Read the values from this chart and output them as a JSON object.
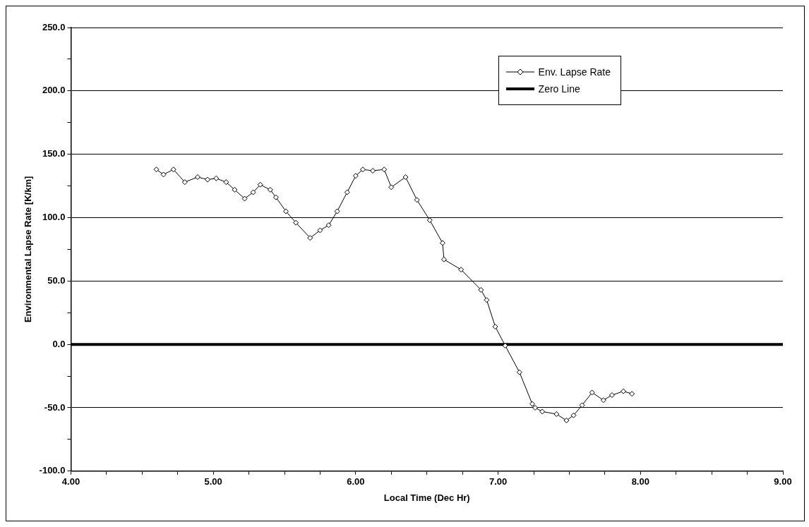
{
  "chart_data": {
    "type": "line",
    "xlabel": "Local Time (Dec Hr)",
    "ylabel": "Environmental Lapse Rate [K/km]",
    "xlim": [
      4,
      9
    ],
    "xticks": [
      {
        "value": 4,
        "label": "4.00"
      },
      {
        "value": 4.25,
        "label": null
      },
      {
        "value": 4.5,
        "label": null
      },
      {
        "value": 4.75,
        "label": null
      },
      {
        "value": 5,
        "label": "5.00"
      },
      {
        "value": 5.25,
        "label": null
      },
      {
        "value": 5.5,
        "label": null
      },
      {
        "value": 5.75,
        "label": null
      },
      {
        "value": 6,
        "label": "6.00"
      },
      {
        "value": 6.25,
        "label": null
      },
      {
        "value": 6.5,
        "label": null
      },
      {
        "value": 6.75,
        "label": null
      },
      {
        "value": 7,
        "label": "7.00"
      },
      {
        "value": 7.25,
        "label": null
      },
      {
        "value": 7.5,
        "label": null
      },
      {
        "value": 7.75,
        "label": null
      },
      {
        "value": 8,
        "label": "8.00"
      },
      {
        "value": 8.25,
        "label": null
      },
      {
        "value": 8.5,
        "label": null
      },
      {
        "value": 8.75,
        "label": null
      },
      {
        "value": 9,
        "label": "9.00"
      }
    ],
    "ylim": [
      -100,
      250
    ],
    "yticks": [
      {
        "value": -100,
        "label": "-100.0"
      },
      {
        "value": -75,
        "label": null
      },
      {
        "value": -50,
        "label": "-50.0"
      },
      {
        "value": -25,
        "label": null
      },
      {
        "value": 0,
        "label": "0.0"
      },
      {
        "value": 25,
        "label": null
      },
      {
        "value": 50,
        "label": "50.0"
      },
      {
        "value": 75,
        "label": null
      },
      {
        "value": 100,
        "label": "100.0"
      },
      {
        "value": 125,
        "label": null
      },
      {
        "value": 150,
        "label": "150.0"
      },
      {
        "value": 175,
        "label": null
      },
      {
        "value": 200,
        "label": "200.0"
      },
      {
        "value": 225,
        "label": null
      },
      {
        "value": 250,
        "label": "250.0"
      }
    ],
    "grid": "y",
    "legend": "top right",
    "series": [
      {
        "name": "Env. Lapse Rate",
        "color": "#000000",
        "marker": "diamond",
        "x": [
          4.6,
          4.65,
          4.72,
          4.8,
          4.89,
          4.96,
          5.02,
          5.09,
          5.15,
          5.22,
          5.28,
          5.33,
          5.4,
          5.44,
          5.51,
          5.58,
          5.68,
          5.75,
          5.81,
          5.87,
          5.94,
          6.0,
          6.05,
          6.12,
          6.2,
          6.25,
          6.35,
          6.43,
          6.52,
          6.61,
          6.62,
          6.74,
          6.88,
          6.92,
          6.98,
          7.05,
          7.15,
          7.24,
          7.26,
          7.31,
          7.41,
          7.48,
          7.53,
          7.59,
          7.66,
          7.74,
          7.8,
          7.88,
          7.94
        ],
        "values": [
          138,
          134,
          138,
          128,
          132,
          130,
          131,
          128,
          122,
          115,
          120,
          126,
          122,
          116,
          105,
          96,
          84,
          90,
          94,
          105,
          120,
          133,
          138,
          137,
          138,
          124,
          132,
          114,
          98,
          80,
          67,
          59,
          43,
          35,
          14,
          -1,
          -22,
          -47,
          -50,
          -53,
          -55,
          -60,
          -56,
          -48,
          -38,
          -44,
          -40,
          -37,
          -39
        ]
      },
      {
        "name": "Zero Line",
        "color": "#000000",
        "marker": "none",
        "x": [
          4,
          9
        ],
        "values": [
          0,
          0
        ]
      }
    ]
  }
}
